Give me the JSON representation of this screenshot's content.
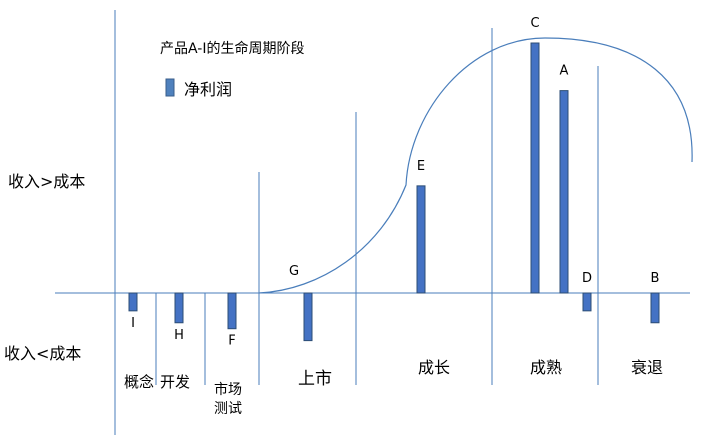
{
  "chart_data": {
    "type": "bar",
    "title": "产品A-I的生命周期阶段",
    "legend": {
      "label": "净利润",
      "color": "#4472c4",
      "position": "top-left"
    },
    "ylabel_top": "收入>成本",
    "ylabel_bottom": "收入<成本",
    "ylim": [
      -10,
      42
    ],
    "grid": false,
    "bars": [
      {
        "label": "I",
        "value": -3,
        "stage": "概念"
      },
      {
        "label": "H",
        "value": -5,
        "stage": "开发"
      },
      {
        "label": "F",
        "value": -6,
        "stage": "市场测试"
      },
      {
        "label": "G",
        "value": -8,
        "stage": "上市"
      },
      {
        "label": "E",
        "value": 18,
        "stage": "成长"
      },
      {
        "label": "C",
        "value": 42,
        "stage": "成熟"
      },
      {
        "label": "A",
        "value": 34,
        "stage": "成熟"
      },
      {
        "label": "D",
        "value": -3,
        "stage": "成熟"
      },
      {
        "label": "B",
        "value": -5,
        "stage": "衰退"
      }
    ],
    "stages": [
      {
        "label": "概念"
      },
      {
        "label": "开发"
      },
      {
        "label": "市场",
        "label2": "测试"
      },
      {
        "label": "上市"
      },
      {
        "label": "成长"
      },
      {
        "label": "成熟"
      },
      {
        "label": "衰退"
      }
    ]
  }
}
